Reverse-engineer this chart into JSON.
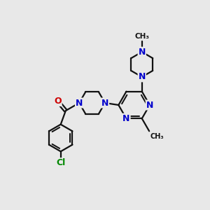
{
  "bg_color": "#e8e8e8",
  "bond_color": "#111111",
  "N_color": "#0000cc",
  "O_color": "#cc0000",
  "Cl_color": "#008800",
  "bond_width": 1.6,
  "font_size_atom": 9,
  "font_size_small": 7.5,
  "xlim": [
    0,
    10
  ],
  "ylim": [
    0,
    10
  ],
  "figsize": [
    3.0,
    3.0
  ],
  "dpi": 100,
  "methyl_label": "CH₃",
  "N_label": "N",
  "O_label": "O",
  "Cl_label": "Cl"
}
